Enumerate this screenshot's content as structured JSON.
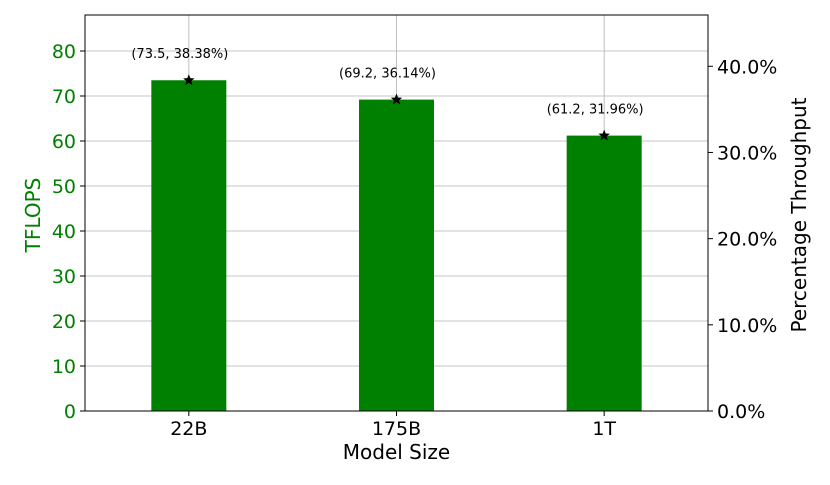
{
  "chart_data": {
    "type": "bar",
    "categories": [
      "22B",
      "175B",
      "1T"
    ],
    "series": [
      {
        "values": [
          73.5,
          69.2,
          61.2
        ],
        "color": "#008000",
        "axis": "left"
      },
      {
        "values": [
          38.38,
          36.14,
          31.96
        ],
        "marker": "star",
        "color": "#000000",
        "axis": "right"
      }
    ],
    "annotations": [
      "(73.5, 38.38%)",
      "(69.2, 36.14%)",
      "(61.2, 31.96%)"
    ],
    "xlabel": "Model Size",
    "ylabel_left": "TFLOPS",
    "ylabel_right": "Percentage Throughput",
    "ylim_left": [
      0,
      88
    ],
    "yticks_left": [
      0,
      10,
      20,
      30,
      40,
      50,
      60,
      70,
      80
    ],
    "ylim_right": [
      0,
      45.95
    ],
    "yticks_right": [
      "0.0%",
      "10.0%",
      "20.0%",
      "30.0%",
      "40.0%"
    ],
    "grid": true,
    "left_axis_color": "#008000"
  }
}
